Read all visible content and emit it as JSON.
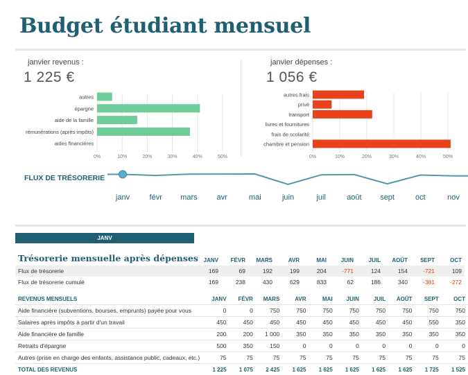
{
  "header": {
    "title": "Budget étudiant mensuel"
  },
  "summary": {
    "income_label": "janvier revenus :",
    "income_value": "1 225 €",
    "expense_label": "janvier dépenses :",
    "expense_value": "1 056 €"
  },
  "colors": {
    "income": "#6dcc9a",
    "expense": "#e8421d",
    "accent": "#1f5f73",
    "flow": "#4a98b2"
  },
  "chart_data": [
    {
      "type": "bar",
      "orientation": "horizontal",
      "categories": [
        "autres",
        "épargne",
        "aide de la famille",
        "rémunérations (après impôts)",
        "aides financières"
      ],
      "values": [
        6,
        41,
        16,
        37,
        0
      ],
      "xlim": [
        0,
        50
      ],
      "ticks": [
        "0%",
        "10%",
        "20%",
        "30%",
        "40%",
        "50%"
      ],
      "grid": true
    },
    {
      "type": "bar",
      "orientation": "horizontal",
      "categories": [
        "autres frais",
        "privé",
        "transport",
        "livres et fournitures",
        "frais de scolarité",
        "chambre et pension"
      ],
      "values": [
        19,
        7,
        22,
        0,
        0,
        51
      ],
      "xlim": [
        0,
        50
      ],
      "ticks": [
        "0%",
        "10%",
        "20%",
        "30%",
        "40%",
        "50%"
      ],
      "grid": true
    },
    {
      "type": "line",
      "title": "FLUX DE TRÉSORERIE",
      "categories": [
        "janv",
        "févr",
        "mars",
        "avr",
        "mai",
        "juin",
        "juil",
        "août",
        "sept",
        "oct",
        "nov"
      ],
      "values": [
        169,
        69,
        192,
        199,
        204,
        -771,
        124,
        154,
        -721,
        109,
        30
      ]
    }
  ],
  "sheet_tab": {
    "label": "JANV"
  },
  "treasury": {
    "title": "Trésorerie mensuelle après dépenses",
    "months": [
      "JANV",
      "FÉVR",
      "MARS",
      "AVR",
      "MAI",
      "JUIN",
      "JUIL",
      "AOÛT",
      "SEPT",
      "OCT"
    ],
    "rows": [
      {
        "label": "Flux de trésorerie",
        "values": [
          "169",
          "69",
          "192",
          "199",
          "204",
          "-771",
          "124",
          "154",
          "-721",
          "109"
        ]
      },
      {
        "label": "Flux de trésorerie cumulé",
        "values": [
          "169",
          "238",
          "430",
          "629",
          "833",
          "62",
          "186",
          "340",
          "-381",
          "-272"
        ]
      }
    ]
  },
  "income_table": {
    "title": "REVENUS MENSUELS",
    "months": [
      "JANV",
      "FÉVR",
      "MARS",
      "AVR",
      "MAI",
      "JUIN",
      "JUIL",
      "AOÛT",
      "SEPT",
      "OCT"
    ],
    "rows": [
      {
        "label": "Aide financière (subventions, bourses, emprunts) payée pour vous",
        "values": [
          "0",
          "0",
          "750",
          "750",
          "750",
          "750",
          "750",
          "750",
          "750",
          "750"
        ]
      },
      {
        "label": "Salaires après impôts à partir d'un travail",
        "values": [
          "450",
          "450",
          "450",
          "450",
          "450",
          "450",
          "450",
          "450",
          "550",
          "350"
        ]
      },
      {
        "label": "Aide financière de famille",
        "values": [
          "200",
          "200",
          "1 000",
          "350",
          "350",
          "350",
          "350",
          "350",
          "350",
          "350"
        ]
      },
      {
        "label": "Retraits d'épargne",
        "values": [
          "500",
          "350",
          "150",
          "0",
          "0",
          "0",
          "0",
          "0",
          "0",
          "0"
        ]
      },
      {
        "label": "Autres (prise en charge des enfants, assistance public, cadeaux, etc.)",
        "values": [
          "75",
          "75",
          "75",
          "75",
          "75",
          "75",
          "75",
          "75",
          "75",
          "75"
        ]
      }
    ],
    "total": {
      "label": "TOTAL DES REVENUS",
      "values": [
        "1 225",
        "1 075",
        "2 425",
        "1 625",
        "1 625",
        "1 625",
        "1 625",
        "1 625",
        "1 725",
        "1 525"
      ]
    }
  }
}
